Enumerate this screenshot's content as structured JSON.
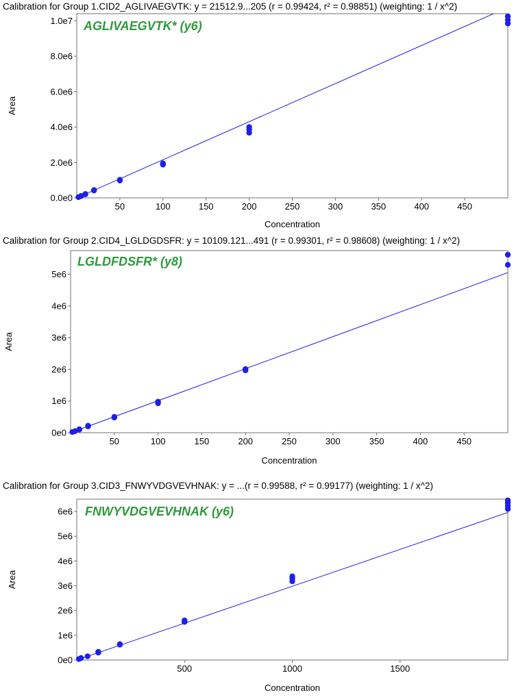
{
  "chart_data": [
    {
      "type": "scatter",
      "title": "Calibration for Group 1.CID2_AGLIVAEGVTK: y = 21512.9...205 (r = 0.99424, r² = 0.98851)  (weighting: 1 / x^2)",
      "annotation": "AGLIVAEGVTK* (y6)",
      "xlabel": "Concentration",
      "ylabel": "Area",
      "xlim": [
        0,
        500
      ],
      "ylim": [
        0,
        10400000
      ],
      "xticks": [
        50,
        100,
        150,
        200,
        250,
        300,
        350,
        400,
        450
      ],
      "xtick_labels": [
        "50",
        "100",
        "150",
        "200",
        "250",
        "300",
        "350",
        "400",
        "450"
      ],
      "yticks": [
        0,
        2000000,
        4000000,
        6000000,
        8000000,
        10000000
      ],
      "ytick_labels": [
        "0.0e0",
        "2.0e6",
        "4.0e6",
        "6.0e6",
        "8.0e6",
        "1.0e7"
      ],
      "fit": {
        "slope": 21512.9,
        "x": [
          0,
          500
        ]
      },
      "points": [
        {
          "x": 2,
          "y": 40000
        },
        {
          "x": 5,
          "y": 100000
        },
        {
          "x": 5,
          "y": 110000
        },
        {
          "x": 10,
          "y": 200000
        },
        {
          "x": 10,
          "y": 220000
        },
        {
          "x": 20,
          "y": 420000
        },
        {
          "x": 20,
          "y": 440000
        },
        {
          "x": 50,
          "y": 980000
        },
        {
          "x": 50,
          "y": 1020000
        },
        {
          "x": 100,
          "y": 1880000
        },
        {
          "x": 100,
          "y": 1950000
        },
        {
          "x": 200,
          "y": 3680000
        },
        {
          "x": 200,
          "y": 3850000
        },
        {
          "x": 200,
          "y": 4000000
        },
        {
          "x": 500,
          "y": 9850000
        },
        {
          "x": 500,
          "y": 10050000
        },
        {
          "x": 500,
          "y": 10250000
        }
      ]
    },
    {
      "type": "scatter",
      "title": "Calibration for Group 2.CID4_LGLDGDSFR: y = 10109.121...491 (r = 0.99301, r² = 0.98608)  (weighting: 1 / x^2)",
      "annotation": "LGLDFDSFR* (y8)",
      "xlabel": "Concentration",
      "ylabel": "Area",
      "xlim": [
        0,
        500
      ],
      "ylim": [
        0,
        5750000
      ],
      "xticks": [
        50,
        100,
        150,
        200,
        250,
        300,
        350,
        400,
        450
      ],
      "xtick_labels": [
        "50",
        "100",
        "150",
        "200",
        "250",
        "300",
        "350",
        "400",
        "450"
      ],
      "yticks": [
        0,
        1000000,
        2000000,
        3000000,
        4000000,
        5000000
      ],
      "ytick_labels": [
        "0e0",
        "1e6",
        "2e6",
        "3e6",
        "4e6",
        "5e6"
      ],
      "fit": {
        "slope": 10109.121,
        "x": [
          0,
          500
        ]
      },
      "points": [
        {
          "x": 2,
          "y": 20000
        },
        {
          "x": 5,
          "y": 50000
        },
        {
          "x": 10,
          "y": 100000
        },
        {
          "x": 10,
          "y": 110000
        },
        {
          "x": 20,
          "y": 200000
        },
        {
          "x": 20,
          "y": 220000
        },
        {
          "x": 50,
          "y": 480000
        },
        {
          "x": 50,
          "y": 500000
        },
        {
          "x": 100,
          "y": 930000
        },
        {
          "x": 100,
          "y": 980000
        },
        {
          "x": 200,
          "y": 1970000
        },
        {
          "x": 200,
          "y": 2010000
        },
        {
          "x": 500,
          "y": 5300000
        },
        {
          "x": 500,
          "y": 5620000
        }
      ]
    },
    {
      "type": "scatter",
      "title": "Calibration for Group 3.CID3_FNWYVDGVEVHNAK: y = ...(r = 0.99588, r² = 0.99177)  (weighting: 1 / x^2)",
      "annotation": "FNWYVDGVEVHNAK (y6)",
      "xlabel": "Concentration",
      "ylabel": "Area",
      "xlim": [
        0,
        2000
      ],
      "ylim": [
        0,
        6500000
      ],
      "xticks": [
        500,
        1000,
        1500
      ],
      "xtick_labels": [
        "500",
        "1000",
        "1500"
      ],
      "yticks": [
        0,
        1000000,
        2000000,
        3000000,
        4000000,
        5000000,
        6000000
      ],
      "ytick_labels": [
        "0e0",
        "1e6",
        "2e6",
        "3e6",
        "4e6",
        "5e6",
        "6e6"
      ],
      "fit": {
        "slope": 2980,
        "x": [
          0,
          2000
        ]
      },
      "points": [
        {
          "x": 10,
          "y": 40000
        },
        {
          "x": 20,
          "y": 80000
        },
        {
          "x": 50,
          "y": 150000
        },
        {
          "x": 100,
          "y": 300000
        },
        {
          "x": 100,
          "y": 330000
        },
        {
          "x": 200,
          "y": 620000
        },
        {
          "x": 200,
          "y": 640000
        },
        {
          "x": 500,
          "y": 1540000
        },
        {
          "x": 500,
          "y": 1600000
        },
        {
          "x": 1000,
          "y": 3180000
        },
        {
          "x": 1000,
          "y": 3300000
        },
        {
          "x": 1000,
          "y": 3380000
        },
        {
          "x": 2000,
          "y": 6100000
        },
        {
          "x": 2000,
          "y": 6230000
        },
        {
          "x": 2000,
          "y": 6350000
        },
        {
          "x": 2000,
          "y": 6450000
        }
      ]
    }
  ]
}
